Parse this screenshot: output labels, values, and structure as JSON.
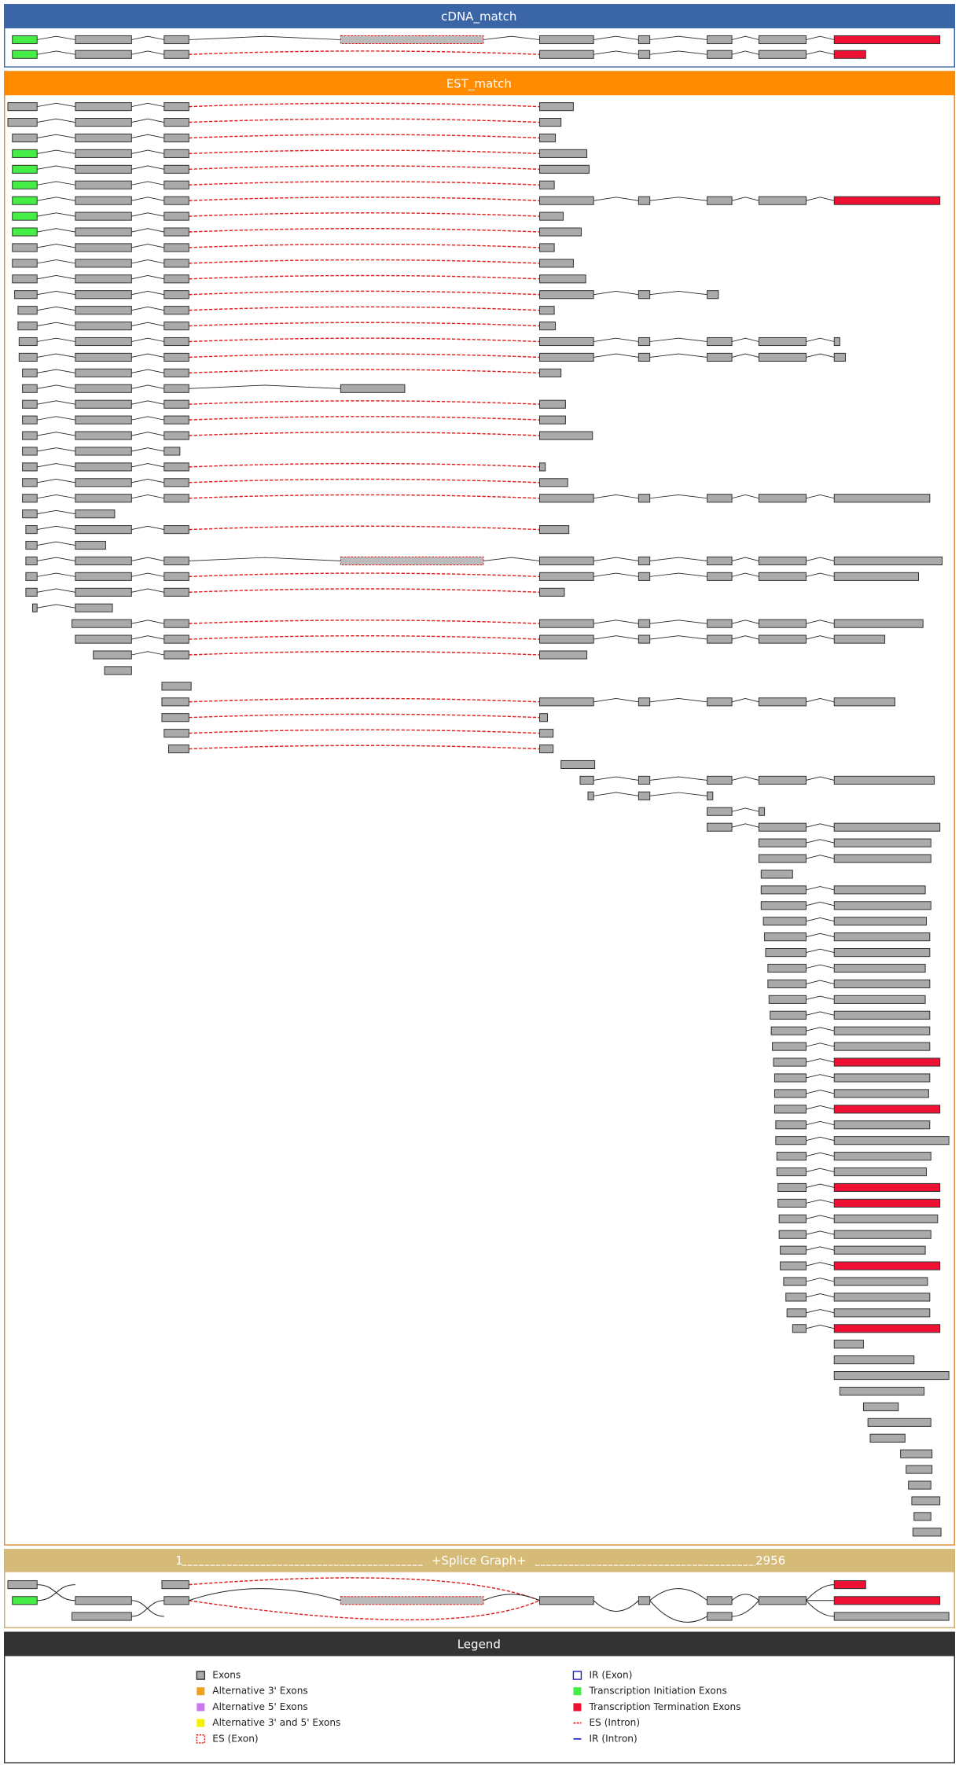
{
  "tracks": {
    "cdna": {
      "title": "cDNA_match"
    },
    "est": {
      "title": "EST_match"
    },
    "splice_graph": {
      "start": "1",
      "title": "+Splice Graph+",
      "end": "2956"
    }
  },
  "legend": {
    "title": "Legend",
    "items": [
      "Exons",
      "Alternative 3' Exons",
      "Alternative 5' Exons",
      "Alternative 3' and 5' Exons",
      "ES (Exon)",
      "IR (Exon)",
      "Transcription Initiation Exons",
      "Transcription Termination Exons",
      "ES (Intron)",
      "IR (Intron)"
    ]
  }
}
